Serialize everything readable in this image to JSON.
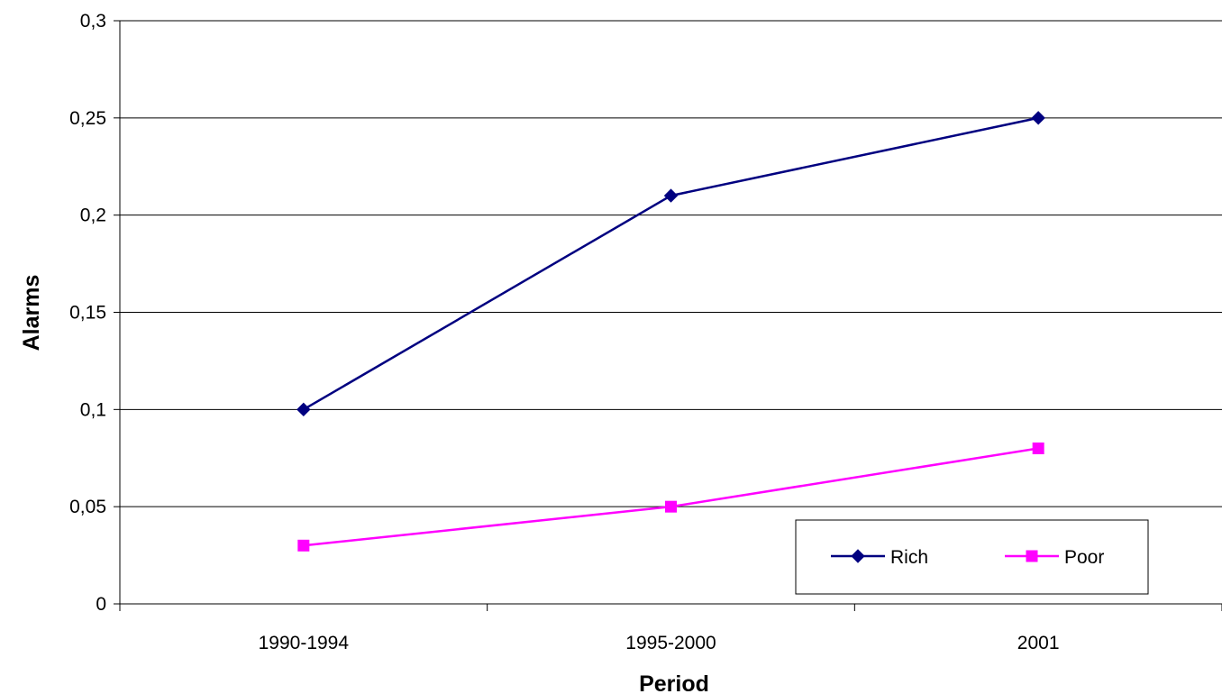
{
  "chart_data": {
    "type": "line",
    "categories": [
      "1990-1994",
      "1995-2000",
      "2001"
    ],
    "series": [
      {
        "name": "Rich",
        "values": [
          0.1,
          0.21,
          0.25
        ],
        "color": "#000080",
        "marker": "diamond"
      },
      {
        "name": "Poor",
        "values": [
          0.03,
          0.05,
          0.08
        ],
        "color": "#FF00FF",
        "marker": "square"
      }
    ],
    "xlabel": "Period",
    "ylabel": "Alarms",
    "ylim": [
      0,
      0.3
    ],
    "yticks": [
      {
        "value": 0,
        "label": "0"
      },
      {
        "value": 0.05,
        "label": "0,05"
      },
      {
        "value": 0.1,
        "label": "0,1"
      },
      {
        "value": 0.15,
        "label": "0,15"
      },
      {
        "value": 0.2,
        "label": "0,2"
      },
      {
        "value": 0.25,
        "label": "0,25"
      },
      {
        "value": 0.3,
        "label": "0,3"
      }
    ],
    "grid": true,
    "legend_position": "bottom-right"
  }
}
